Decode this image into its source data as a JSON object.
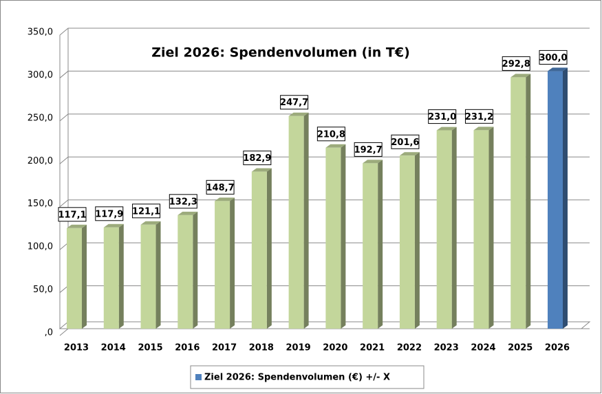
{
  "chart_data": {
    "type": "bar3d",
    "title": "Ziel 2026: Spendenvolumen (in T€)",
    "categories": [
      "2013",
      "2014",
      "2015",
      "2016",
      "2017",
      "2018",
      "2019",
      "2020",
      "2021",
      "2022",
      "2023",
      "2024",
      "2025",
      "2026"
    ],
    "series": [
      {
        "name": "Ziel 2026: Spendenvolumen (€) +/- X",
        "color": "#4f81bd",
        "values": [
          117.1,
          117.9,
          121.1,
          132.3,
          148.7,
          182.9,
          247.7,
          210.8,
          192.7,
          201.6,
          231.0,
          231.2,
          292.8,
          300.0
        ],
        "value_labels": [
          "117,1",
          "117,9",
          "121,1",
          "132,3",
          "148,7",
          "182,9",
          "247,7",
          "210,8",
          "192,7",
          "201,6",
          "231,0",
          "231,2",
          "292,8",
          "300,0"
        ],
        "point_colors": [
          "#c3d69b",
          "#c3d69b",
          "#c3d69b",
          "#c3d69b",
          "#c3d69b",
          "#c3d69b",
          "#c3d69b",
          "#c3d69b",
          "#c3d69b",
          "#c3d69b",
          "#c3d69b",
          "#c3d69b",
          "#c3d69b",
          "#4f81bd"
        ]
      }
    ],
    "ylim": [
      0,
      350
    ],
    "yticks": [
      {
        "value": 0,
        "label": ",0"
      },
      {
        "value": 50,
        "label": "50,0"
      },
      {
        "value": 100,
        "label": "100,0"
      },
      {
        "value": 150,
        "label": "150,0"
      },
      {
        "value": 200,
        "label": "200,0"
      },
      {
        "value": 250,
        "label": "250,0"
      },
      {
        "value": 300,
        "label": "300,0"
      },
      {
        "value": 350,
        "label": "350,0"
      }
    ],
    "grid": true,
    "legend": "bottom"
  }
}
